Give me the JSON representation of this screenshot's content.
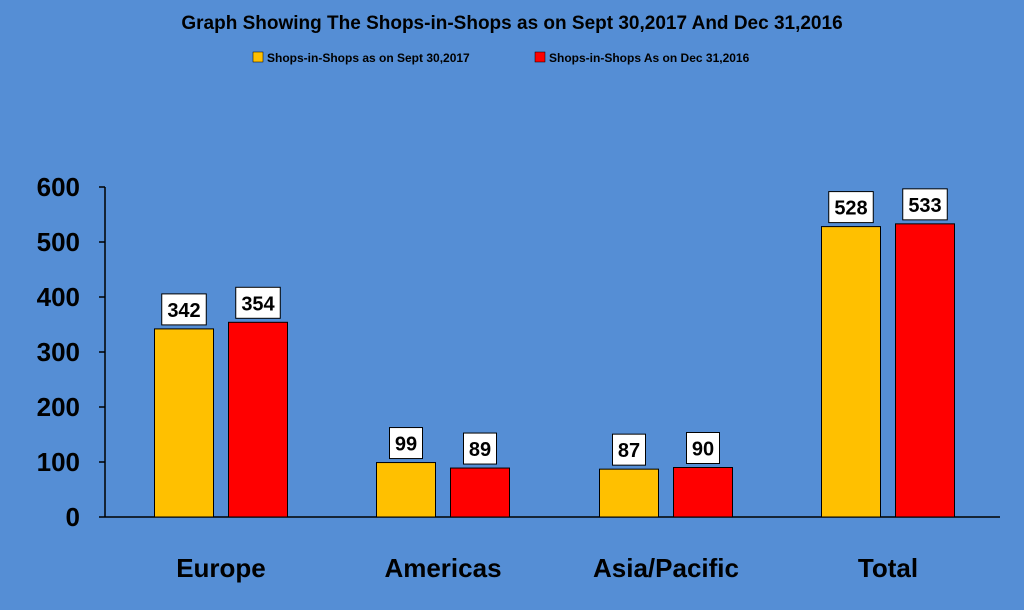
{
  "chart_data": {
    "type": "bar",
    "title": "Graph Showing The Shops-in-Shops as on Sept 30,2017 And Dec 31,2016",
    "categories": [
      "Europe",
      "Americas",
      "Asia/Pacific",
      "Total"
    ],
    "series": [
      {
        "name": "Shops-in-Shops  as on Sept 30,2017",
        "values": [
          342,
          99,
          87,
          528
        ],
        "color": "#FFC000"
      },
      {
        "name": "Shops-in-Shops  As on Dec 31,2016",
        "values": [
          354,
          89,
          90,
          533
        ],
        "color": "#FF0000"
      }
    ],
    "yticks": [
      "0",
      "100",
      "200",
      "300",
      "400",
      "500",
      "600"
    ],
    "ylim": [
      0,
      600
    ],
    "grid": false,
    "legend_position": "top-center",
    "data_labels": true,
    "background_color": "#558ED5"
  }
}
